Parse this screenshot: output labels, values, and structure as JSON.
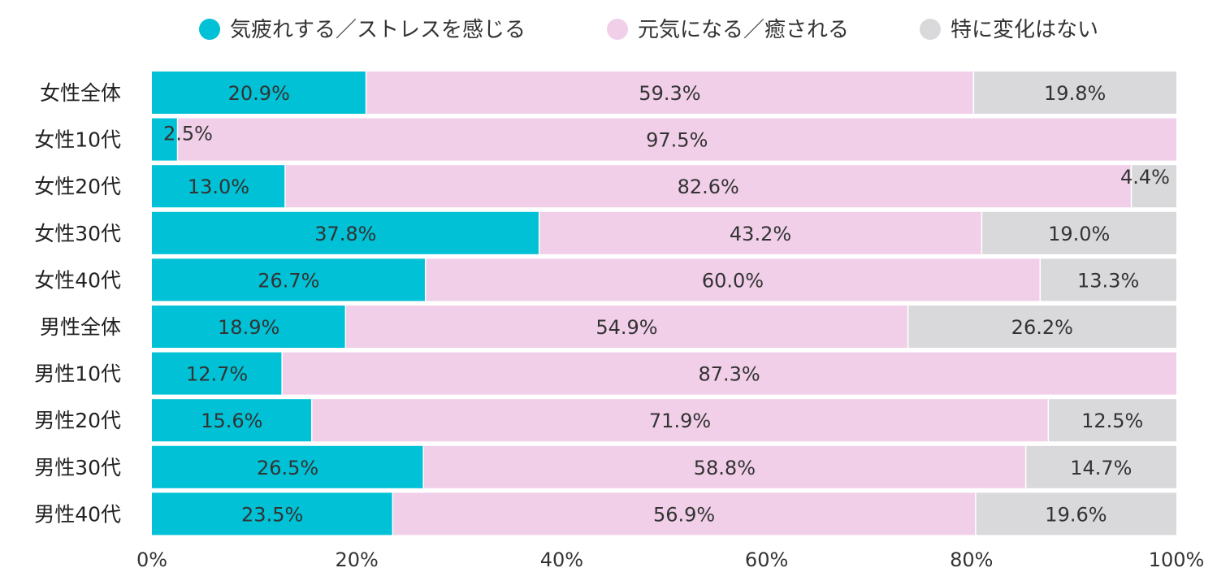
{
  "chart_data": {
    "type": "bar",
    "orientation": "horizontal",
    "stacked": true,
    "percent": true,
    "categories": [
      "女性全体",
      "女性10代",
      "女性20代",
      "女性30代",
      "女性40代",
      "男性全体",
      "男性10代",
      "男性20代",
      "男性30代",
      "男性40代"
    ],
    "series": [
      {
        "name": "気疲れする／ストレスを感じる",
        "color": "#00c1d5",
        "values": [
          20.9,
          2.5,
          13.0,
          37.8,
          26.7,
          18.9,
          12.7,
          15.6,
          26.5,
          23.5
        ]
      },
      {
        "name": "元気になる／癒される",
        "color": "#f1cfe9",
        "values": [
          59.3,
          97.5,
          82.6,
          43.2,
          60.0,
          54.9,
          87.3,
          71.9,
          58.8,
          56.9
        ]
      },
      {
        "name": "特に変化はない",
        "color": "#d9d9dc",
        "values": [
          19.8,
          0,
          4.4,
          19.0,
          13.3,
          26.2,
          0,
          12.5,
          14.7,
          19.6
        ]
      }
    ],
    "data_labels": [
      [
        "20.9%",
        "2.5%",
        "13.0%",
        "37.8%",
        "26.7%",
        "18.9%",
        "12.7%",
        "15.6%",
        "26.5%",
        "23.5%"
      ],
      [
        "59.3%",
        "97.5%",
        "82.6%",
        "43.2%",
        "60.0%",
        "54.9%",
        "87.3%",
        "71.9%",
        "58.8%",
        "56.9%"
      ],
      [
        "19.8%",
        "",
        "4.4%",
        "19.0%",
        "13.3%",
        "26.2%",
        "",
        "12.5%",
        "14.7%",
        "19.6%"
      ]
    ],
    "x_ticks": [
      "0%",
      "20%",
      "40%",
      "60%",
      "80%",
      "100%"
    ],
    "xlim": [
      0,
      100
    ],
    "legend_position": "top",
    "grid": false
  }
}
